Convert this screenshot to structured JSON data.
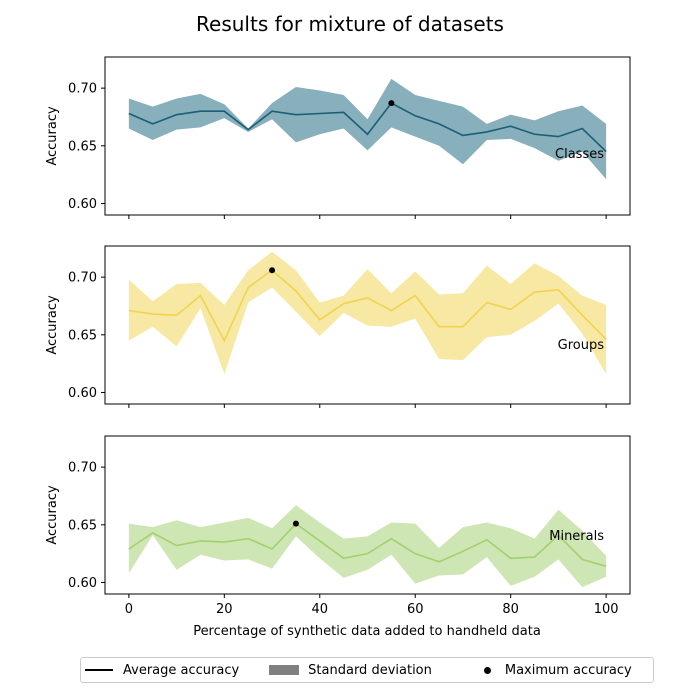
{
  "figure": {
    "title": "Results for mixture of datasets",
    "xlabel": "Percentage of synthetic data added to handheld data"
  },
  "legend": {
    "average": "Average accuracy",
    "std": "Standard deviation",
    "max": "Maximum accuracy"
  },
  "chart_data": [
    {
      "type": "line",
      "title": "",
      "panel_label": "Classes",
      "ylabel": "Accuracy",
      "xlabel": "",
      "xlim": [
        -5,
        105
      ],
      "ylim": [
        0.59,
        0.727
      ],
      "xticks": [
        0,
        20,
        40,
        60,
        80,
        100
      ],
      "yticks": [
        0.6,
        0.65,
        0.7
      ],
      "ytick_labels": [
        "0.60",
        "0.65",
        "0.70"
      ],
      "show_xtick_labels": false,
      "line_color": "#1b5e75",
      "fill_color": "#87afbc",
      "series": [
        {
          "x": [
            0,
            5,
            10,
            15,
            20,
            25,
            30,
            35,
            40,
            45,
            50,
            55,
            60,
            65,
            70,
            75,
            80,
            85,
            90,
            95,
            100
          ],
          "mean": [
            0.678,
            0.669,
            0.677,
            0.68,
            0.68,
            0.664,
            0.68,
            0.677,
            0.678,
            0.679,
            0.66,
            0.687,
            0.676,
            0.669,
            0.659,
            0.662,
            0.667,
            0.66,
            0.658,
            0.665,
            0.645
          ],
          "upper": [
            0.691,
            0.684,
            0.691,
            0.695,
            0.686,
            0.665,
            0.687,
            0.701,
            0.698,
            0.694,
            0.673,
            0.708,
            0.694,
            0.689,
            0.684,
            0.669,
            0.677,
            0.672,
            0.68,
            0.685,
            0.669
          ],
          "lower": [
            0.665,
            0.655,
            0.664,
            0.666,
            0.674,
            0.662,
            0.673,
            0.653,
            0.66,
            0.665,
            0.646,
            0.666,
            0.658,
            0.65,
            0.634,
            0.655,
            0.656,
            0.648,
            0.637,
            0.645,
            0.621
          ]
        }
      ],
      "max_point": {
        "x": 55,
        "y": 0.687
      }
    },
    {
      "type": "line",
      "title": "",
      "panel_label": "Groups",
      "ylabel": "Accuracy",
      "xlabel": "",
      "xlim": [
        -5,
        105
      ],
      "ylim": [
        0.59,
        0.727
      ],
      "xticks": [
        0,
        20,
        40,
        60,
        80,
        100
      ],
      "yticks": [
        0.6,
        0.65,
        0.7
      ],
      "ytick_labels": [
        "0.60",
        "0.65",
        "0.70"
      ],
      "show_xtick_labels": false,
      "line_color": "#f0d44e",
      "fill_color": "#f7e8a3",
      "series": [
        {
          "x": [
            0,
            5,
            10,
            15,
            20,
            25,
            30,
            35,
            40,
            45,
            50,
            55,
            60,
            65,
            70,
            75,
            80,
            85,
            90,
            95,
            100
          ],
          "mean": [
            0.671,
            0.668,
            0.667,
            0.684,
            0.645,
            0.691,
            0.706,
            0.688,
            0.663,
            0.677,
            0.682,
            0.671,
            0.684,
            0.657,
            0.657,
            0.678,
            0.672,
            0.687,
            0.689,
            0.667,
            0.646
          ],
          "upper": [
            0.698,
            0.679,
            0.694,
            0.695,
            0.676,
            0.706,
            0.722,
            0.706,
            0.678,
            0.684,
            0.707,
            0.686,
            0.705,
            0.685,
            0.686,
            0.71,
            0.694,
            0.712,
            0.701,
            0.684,
            0.676
          ],
          "lower": [
            0.645,
            0.657,
            0.64,
            0.673,
            0.616,
            0.678,
            0.691,
            0.67,
            0.649,
            0.669,
            0.658,
            0.657,
            0.664,
            0.629,
            0.628,
            0.648,
            0.65,
            0.662,
            0.677,
            0.651,
            0.616
          ]
        }
      ],
      "max_point": {
        "x": 30,
        "y": 0.706
      }
    },
    {
      "type": "line",
      "title": "",
      "panel_label": "Minerals",
      "ylabel": "Accuracy",
      "xlabel": "Percentage of synthetic data added to handheld data",
      "xlim": [
        -5,
        105
      ],
      "ylim": [
        0.59,
        0.727
      ],
      "xticks": [
        0,
        20,
        40,
        60,
        80,
        100
      ],
      "yticks": [
        0.6,
        0.65,
        0.7
      ],
      "ytick_labels": [
        "0.60",
        "0.65",
        "0.70"
      ],
      "show_xtick_labels": true,
      "line_color": "#a3d06b",
      "fill_color": "#cde6b4",
      "series": [
        {
          "x": [
            0,
            5,
            10,
            15,
            20,
            25,
            30,
            35,
            40,
            45,
            50,
            55,
            60,
            65,
            70,
            75,
            80,
            85,
            90,
            95,
            100
          ],
          "mean": [
            0.629,
            0.643,
            0.632,
            0.636,
            0.635,
            0.638,
            0.629,
            0.651,
            0.636,
            0.621,
            0.625,
            0.638,
            0.625,
            0.618,
            0.627,
            0.637,
            0.621,
            0.622,
            0.641,
            0.62,
            0.614
          ],
          "upper": [
            0.651,
            0.648,
            0.654,
            0.648,
            0.652,
            0.656,
            0.647,
            0.667,
            0.652,
            0.638,
            0.64,
            0.652,
            0.651,
            0.63,
            0.648,
            0.652,
            0.647,
            0.638,
            0.663,
            0.645,
            0.623
          ],
          "lower": [
            0.608,
            0.641,
            0.611,
            0.624,
            0.619,
            0.62,
            0.612,
            0.64,
            0.621,
            0.604,
            0.611,
            0.624,
            0.599,
            0.606,
            0.607,
            0.622,
            0.597,
            0.605,
            0.62,
            0.596,
            0.605
          ]
        }
      ],
      "max_point": {
        "x": 35,
        "y": 0.651
      }
    }
  ]
}
